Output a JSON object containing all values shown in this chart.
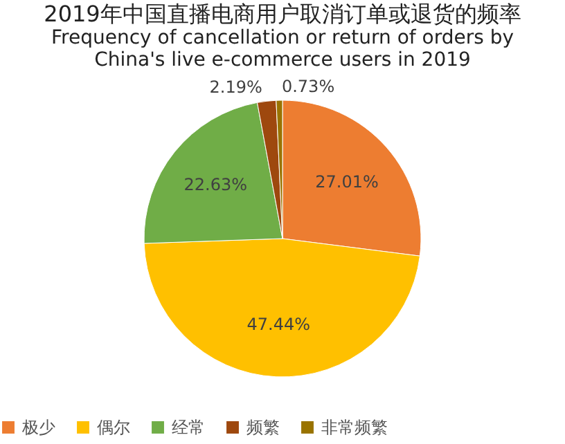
{
  "chart_data": {
    "type": "pie",
    "title": "2019年中国直播电商用户取消订单或退货的频率",
    "subtitle": "Frequency of cancellation or return of orders by China's live e-commerce users in 2019",
    "categories": [
      "极少",
      "偶尔",
      "经常",
      "频繁",
      "非常频繁"
    ],
    "values": [
      27.01,
      47.44,
      22.63,
      2.19,
      0.73
    ],
    "colors": [
      "#ed7d31",
      "#ffc000",
      "#70ad47",
      "#9e480e",
      "#997300"
    ],
    "value_labels": [
      "27.01%",
      "47.44%",
      "22.63%",
      "2.19%",
      "0.73%"
    ],
    "legend": "bottom"
  }
}
